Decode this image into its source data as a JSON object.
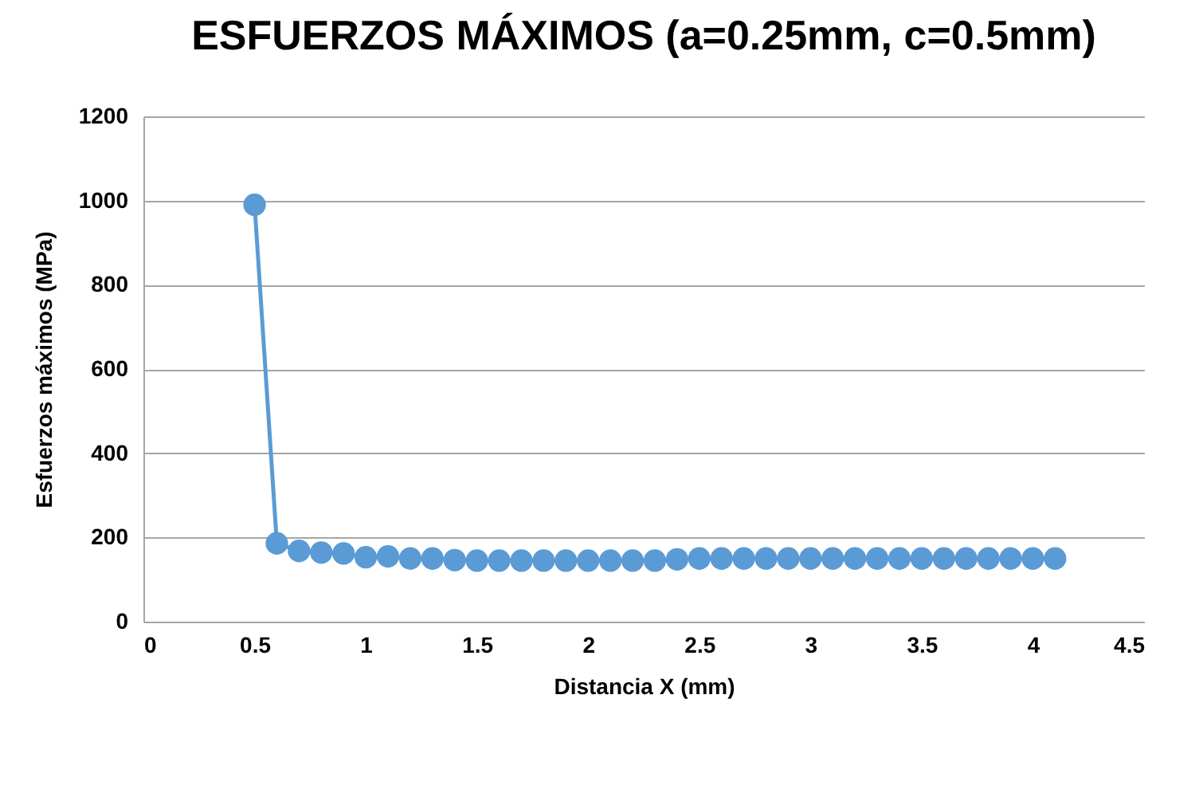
{
  "chart_data": {
    "type": "line",
    "title": "ESFUERZOS MÁXIMOS (a=0.25mm, c=0.5mm)",
    "xlabel": "Distancia X (mm)",
    "ylabel": "Esfuerzos máximos (MPa)",
    "x": [
      0.5,
      0.6,
      0.7,
      0.8,
      0.9,
      1.0,
      1.1,
      1.2,
      1.3,
      1.4,
      1.5,
      1.6,
      1.7,
      1.8,
      1.9,
      2.0,
      2.1,
      2.2,
      2.3,
      2.4,
      2.5,
      2.6,
      2.7,
      2.8,
      2.9,
      3.0,
      3.1,
      3.2,
      3.3,
      3.4,
      3.5,
      3.6,
      3.7,
      3.8,
      3.9,
      4.0,
      4.1
    ],
    "series": [
      {
        "color": "#5b9bd5",
        "values": [
          990,
          186,
          168,
          164,
          162,
          153,
          155,
          150,
          150,
          146,
          145,
          145,
          145,
          145,
          145,
          145,
          145,
          145,
          145,
          148,
          150,
          150,
          150,
          150,
          150,
          150,
          150,
          150,
          150,
          150,
          150,
          150,
          150,
          150,
          150,
          150,
          150
        ]
      }
    ],
    "xlim": [
      0,
      4.5
    ],
    "xticks": [
      0,
      0.5,
      1,
      1.5,
      2,
      2.5,
      3,
      3.5,
      4,
      4.5
    ],
    "ylim": [
      0,
      1200
    ],
    "yticks": [
      0,
      200,
      400,
      600,
      800,
      1000,
      1200
    ],
    "grid": "y",
    "marker": "circle",
    "line_style": "solid"
  }
}
